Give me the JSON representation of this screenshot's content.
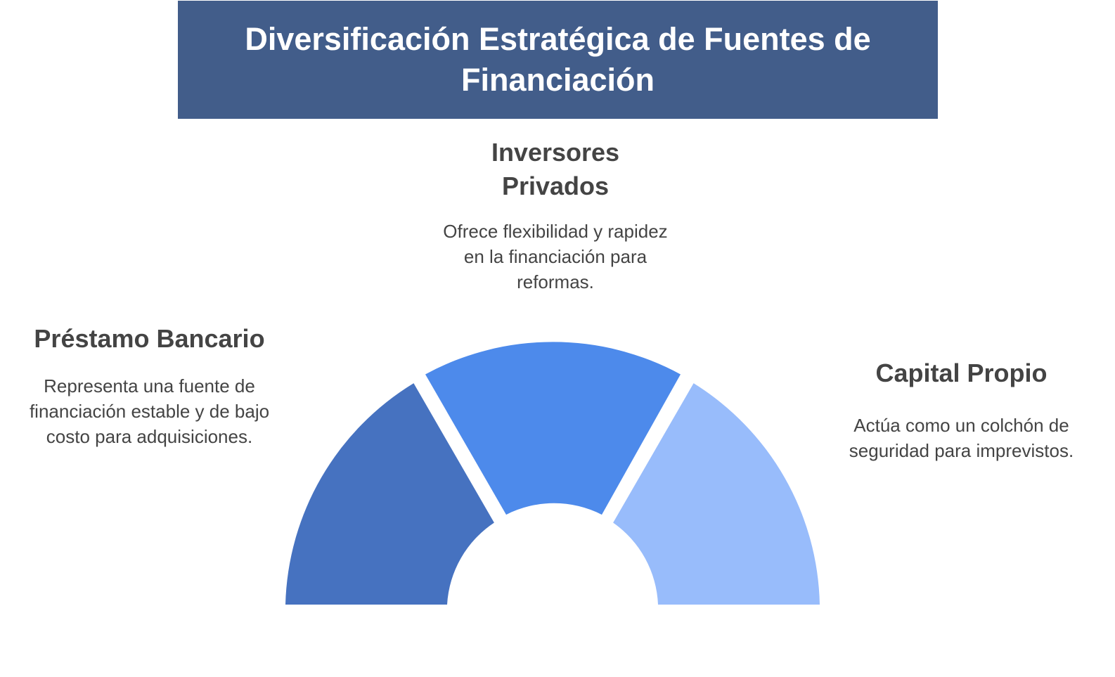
{
  "title": "Diversificación Estratégica de Fuentes de Financiación",
  "segments": [
    {
      "id": "prestamo",
      "heading": "Préstamo Bancario",
      "description": "Representa una fuente de financiación estable y de bajo costo para adquisiciones.",
      "color": "#4672c0"
    },
    {
      "id": "inversores",
      "heading": "Inversores Privados",
      "description": "Ofrece flexibilidad y rapidez en la financiación para reformas.",
      "color": "#4d8aeb"
    },
    {
      "id": "capital",
      "heading": "Capital Propio",
      "description": "Actúa como un colchón de seguridad para imprevistos.",
      "color": "#98bcfb"
    }
  ],
  "colors": {
    "title_background": "#425d8a",
    "title_text": "#ffffff",
    "heading_text": "#444444",
    "description_text": "#444444"
  }
}
